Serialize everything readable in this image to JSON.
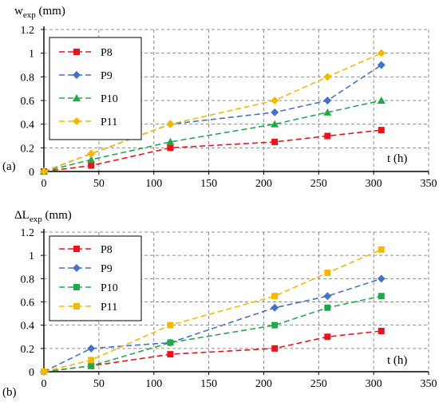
{
  "chart_data": [
    {
      "type": "line",
      "panel_label": "(a)",
      "ylabel_main": "w",
      "ylabel_sub": "exp",
      "ylabel_unit": " (mm)",
      "xlabel": "t (h)",
      "xlim": [
        0,
        350
      ],
      "ylim": [
        0,
        1.2
      ],
      "x_ticks": [
        "0",
        "50",
        "100",
        "150",
        "200",
        "250",
        "300",
        "350"
      ],
      "y_ticks": [
        "0",
        "0.2",
        "0.4",
        "0.6",
        "0.8",
        "1",
        "1.2"
      ],
      "grid": true,
      "legend": "top-left",
      "series": [
        {
          "name": "P8",
          "color": "#e8141c",
          "marker": "square",
          "x": [
            0,
            43,
            115,
            210,
            258,
            307
          ],
          "y": [
            0,
            0.05,
            0.2,
            0.25,
            0.3,
            0.35
          ]
        },
        {
          "name": "P9",
          "color": "#4472c4",
          "marker": "diamond",
          "x": [
            0,
            43,
            115,
            210,
            258,
            307
          ],
          "y": [
            0,
            0.15,
            0.4,
            0.5,
            0.6,
            0.9
          ]
        },
        {
          "name": "P10",
          "color": "#22a84a",
          "marker": "triangle",
          "x": [
            0,
            43,
            115,
            210,
            258,
            307
          ],
          "y": [
            0,
            0.1,
            0.25,
            0.4,
            0.5,
            0.6
          ]
        },
        {
          "name": "P11",
          "color": "#f5b800",
          "marker": "diamond",
          "x": [
            0,
            43,
            115,
            210,
            258,
            307
          ],
          "y": [
            0,
            0.15,
            0.4,
            0.6,
            0.8,
            1.0
          ]
        }
      ]
    },
    {
      "type": "line",
      "panel_label": "(b)",
      "ylabel_main": "ΔL",
      "ylabel_sub": "exp",
      "ylabel_unit": " (mm)",
      "xlabel": "t (h)",
      "xlim": [
        0,
        350
      ],
      "ylim": [
        0,
        1.2
      ],
      "x_ticks": [
        "0",
        "50",
        "100",
        "150",
        "200",
        "250",
        "300",
        "350"
      ],
      "y_ticks": [
        "0",
        "0.2",
        "0.4",
        "0.6",
        "0.8",
        "1",
        "1.2"
      ],
      "grid": true,
      "legend": "top-left",
      "series": [
        {
          "name": "P8",
          "color": "#e8141c",
          "marker": "square",
          "x": [
            0,
            43,
            115,
            210,
            258,
            307
          ],
          "y": [
            0,
            0.05,
            0.15,
            0.2,
            0.3,
            0.35
          ]
        },
        {
          "name": "P9",
          "color": "#4472c4",
          "marker": "diamond",
          "x": [
            0,
            43,
            115,
            210,
            258,
            307
          ],
          "y": [
            0,
            0.2,
            0.25,
            0.55,
            0.65,
            0.8
          ]
        },
        {
          "name": "P10",
          "color": "#22a84a",
          "marker": "square",
          "x": [
            0,
            43,
            115,
            210,
            258,
            307
          ],
          "y": [
            0,
            0.05,
            0.25,
            0.4,
            0.55,
            0.65
          ]
        },
        {
          "name": "P11",
          "color": "#f5b800",
          "marker": "square",
          "x": [
            0,
            43,
            115,
            210,
            258,
            307
          ],
          "y": [
            0,
            0.1,
            0.4,
            0.65,
            0.85,
            1.05
          ]
        }
      ]
    }
  ]
}
